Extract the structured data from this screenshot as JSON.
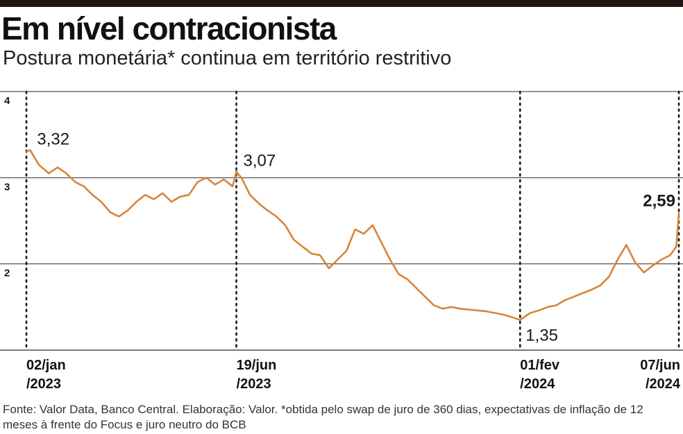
{
  "header": {
    "title": "Em nível contracionista",
    "subtitle": "Postura monetária* continua em território restritivo"
  },
  "footnote": "Fonte: Valor Data, Banco Central. Elaboração: Valor. *obtida pelo swap de juro de 360 dias, expectativas de inflação de 12 meses à frente do Focus e juro neutro do BCB",
  "colors": {
    "line": "#d9843a",
    "grid": "#222222",
    "text": "#1a1a1a"
  },
  "chart_data": {
    "type": "line",
    "title": "Em nível contracionista",
    "subtitle": "Postura monetária* continua em território restritivo",
    "ylim": [
      1.0,
      4.0
    ],
    "yticks": [
      4,
      3,
      2
    ],
    "ytick_labels": [
      "4",
      "3",
      "2"
    ],
    "grid": true,
    "xlim": [
      "2023-01-02",
      "2024-06-07"
    ],
    "markers": [
      {
        "date": "2023-01-02",
        "label_line1": "02/jan",
        "label_line2": "/2023"
      },
      {
        "date": "2023-06-19",
        "label_line1": "19/jun",
        "label_line2": "/2023"
      },
      {
        "date": "2024-02-01",
        "label_line1": "01/fev",
        "label_line2": "/2024"
      },
      {
        "date": "2024-06-07",
        "label_line1": "07/jun",
        "label_line2": "/2024"
      }
    ],
    "annotations": [
      {
        "date": "2023-01-05",
        "value": 3.32,
        "text": "3,32",
        "bold": false
      },
      {
        "date": "2023-06-19",
        "value": 3.07,
        "text": "3,07",
        "bold": false
      },
      {
        "date": "2024-02-01",
        "value": 1.35,
        "text": "1,35",
        "bold": false
      },
      {
        "date": "2024-06-07",
        "value": 2.59,
        "text": "2,59",
        "bold": true
      }
    ],
    "series": [
      {
        "x": [
          "2023-01-02",
          "2023-01-05",
          "2023-01-12",
          "2023-01-20",
          "2023-01-27",
          "2023-02-03",
          "2023-02-10",
          "2023-02-17",
          "2023-02-24",
          "2023-03-03",
          "2023-03-10",
          "2023-03-17",
          "2023-03-24",
          "2023-03-31",
          "2023-04-07",
          "2023-04-14",
          "2023-04-21",
          "2023-04-28",
          "2023-05-05",
          "2023-05-12",
          "2023-05-19",
          "2023-05-26",
          "2023-06-02",
          "2023-06-09",
          "2023-06-16",
          "2023-06-19",
          "2023-06-23",
          "2023-06-30",
          "2023-07-07",
          "2023-07-14",
          "2023-07-21",
          "2023-07-28",
          "2023-08-04",
          "2023-08-11",
          "2023-08-18",
          "2023-08-25",
          "2023-09-01",
          "2023-09-08",
          "2023-09-15",
          "2023-09-22",
          "2023-09-29",
          "2023-10-06",
          "2023-10-13",
          "2023-10-20",
          "2023-10-27",
          "2023-11-03",
          "2023-11-10",
          "2023-11-17",
          "2023-11-24",
          "2023-12-01",
          "2023-12-08",
          "2023-12-15",
          "2023-12-22",
          "2023-12-29",
          "2024-01-05",
          "2024-01-12",
          "2024-01-19",
          "2024-01-26",
          "2024-02-01",
          "2024-02-09",
          "2024-02-16",
          "2024-02-23",
          "2024-03-01",
          "2024-03-08",
          "2024-03-15",
          "2024-03-22",
          "2024-03-29",
          "2024-04-05",
          "2024-04-12",
          "2024-04-19",
          "2024-04-26",
          "2024-05-03",
          "2024-05-10",
          "2024-05-17",
          "2024-05-24",
          "2024-05-31",
          "2024-06-05",
          "2024-06-07"
        ],
        "values": [
          3.3,
          3.32,
          3.15,
          3.05,
          3.12,
          3.05,
          2.95,
          2.9,
          2.8,
          2.72,
          2.6,
          2.55,
          2.62,
          2.72,
          2.8,
          2.75,
          2.82,
          2.72,
          2.78,
          2.8,
          2.95,
          3.0,
          2.92,
          2.98,
          2.9,
          3.07,
          3.0,
          2.8,
          2.7,
          2.62,
          2.55,
          2.45,
          2.28,
          2.2,
          2.12,
          2.1,
          1.95,
          2.05,
          2.15,
          2.4,
          2.35,
          2.45,
          2.25,
          2.05,
          1.88,
          1.82,
          1.72,
          1.62,
          1.52,
          1.48,
          1.5,
          1.48,
          1.47,
          1.46,
          1.45,
          1.43,
          1.41,
          1.38,
          1.35,
          1.43,
          1.46,
          1.5,
          1.52,
          1.58,
          1.62,
          1.66,
          1.7,
          1.75,
          1.85,
          2.05,
          2.22,
          2.02,
          1.9,
          1.98,
          2.05,
          2.1,
          2.2,
          2.59
        ]
      }
    ]
  }
}
